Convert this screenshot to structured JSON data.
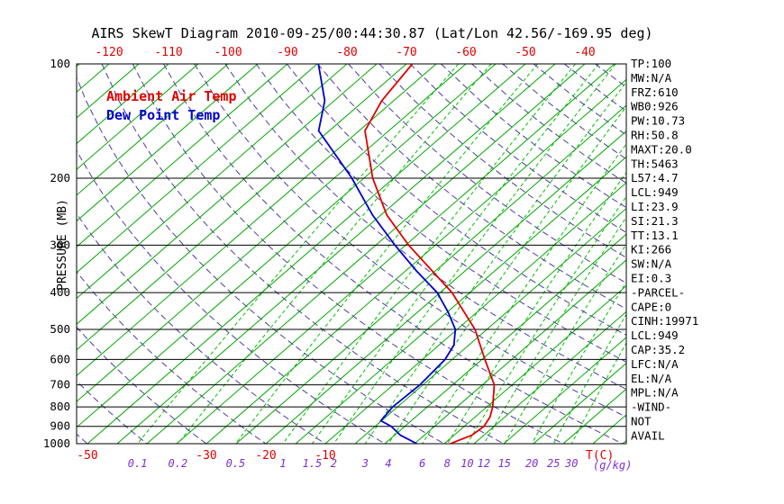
{
  "title": "AIRS SkewT Diagram 2010-09-25/00:44:30.87 (Lat/Lon 42.56/-169.95 deg)",
  "axes": {
    "pressure_label": "PRESSURE (MB)",
    "pressure_ticks": [
      100,
      200,
      300,
      400,
      500,
      600,
      700,
      800,
      900,
      1000
    ],
    "top_temp_ticks": [
      -120,
      -110,
      -100,
      -90,
      -80,
      -70,
      -60,
      -50,
      -40
    ],
    "bottom_temp_ticks": [
      -50,
      -30,
      -20,
      -10
    ],
    "bottom_temp_unit": "T(C)",
    "mixing_ratio_ticks": [
      0.1,
      0.2,
      0.5,
      1,
      1.5,
      2,
      3,
      4,
      6,
      8,
      10,
      12,
      15,
      20,
      25,
      30
    ],
    "mixing_ratio_unit": "(g/kg)"
  },
  "stats": [
    "TP:100",
    "MW:N/A",
    "FRZ:610",
    "WB0:926",
    "PW:10.73",
    "RH:50.8",
    "MAXT:20.0",
    "TH:5463",
    "L57:4.7",
    "LCL:949",
    "LI:23.9",
    "SI:21.3",
    "TT:13.1",
    "KI:266",
    "SW:N/A",
    "EI:0.3",
    "-PARCEL-",
    "CAPE:0",
    "CINH:19971",
    "LCL:949",
    "CAP:35.2",
    "LFC:N/A",
    "EL:N/A",
    "MPL:N/A",
    "-WIND-",
    "NOT",
    "AVAIL"
  ],
  "colors": {
    "isotherm_green": "#00a800",
    "mixing_ratio_green": "#00c000",
    "dry_adiabat_purple": "#4c3d9e",
    "ambient_temp_red": "#e10000",
    "dew_point_blue": "#0000cd",
    "mixing_label_purple": "#7d2fd0",
    "frame_black": "#000000"
  },
  "chart_data": {
    "type": "line",
    "title": "AIRS SkewT Diagram 2010-09-25/00:44:30.87 (Lat/Lon 42.56/-169.95 deg)",
    "xlabel": "Temperature T(C), skewed 45 deg",
    "ylabel": "PRESSURE (MB), log scale",
    "y_range_mb": [
      100,
      1000
    ],
    "top_axis_temp_ticks_c": [
      -120,
      -110,
      -100,
      -90,
      -80,
      -70,
      -60,
      -50,
      -40
    ],
    "bottom_axis_temp_ticks_c": [
      -50,
      -30,
      -20,
      -10
    ],
    "isotherm_step_c": 5,
    "mixing_ratio_lines_g_per_kg": [
      0.1,
      0.2,
      0.5,
      1,
      1.5,
      2,
      3,
      4,
      6,
      8,
      10,
      12,
      15,
      20,
      25,
      30
    ],
    "dry_adiabat_step_c": 10,
    "legend_position": "top-left",
    "series": [
      {
        "name": "Ambient Air Temp",
        "color": "#e10000",
        "points_pressure_mb_temp_c": [
          [
            100,
            -69
          ],
          [
            125,
            -67
          ],
          [
            150,
            -64
          ],
          [
            200,
            -53.5
          ],
          [
            250,
            -44
          ],
          [
            300,
            -34.5
          ],
          [
            400,
            -18
          ],
          [
            500,
            -7
          ],
          [
            600,
            0.5
          ],
          [
            700,
            7
          ],
          [
            800,
            11
          ],
          [
            850,
            12.5
          ],
          [
            900,
            13.3
          ],
          [
            950,
            13
          ],
          [
            1000,
            11
          ]
        ]
      },
      {
        "name": "Dew Point Temp",
        "color": "#0000cd",
        "points_pressure_mb_temp_c": [
          [
            100,
            -84.8
          ],
          [
            125,
            -76.6
          ],
          [
            150,
            -71.8
          ],
          [
            200,
            -57
          ],
          [
            250,
            -46.4
          ],
          [
            300,
            -36.8
          ],
          [
            350,
            -28.3
          ],
          [
            400,
            -20.5
          ],
          [
            450,
            -14.9
          ],
          [
            500,
            -10.3
          ],
          [
            550,
            -7.5
          ],
          [
            600,
            -6.2
          ],
          [
            700,
            -5.5
          ],
          [
            800,
            -5.8
          ],
          [
            870,
            -5.1
          ],
          [
            900,
            -2.3
          ],
          [
            950,
            1
          ],
          [
            1000,
            5.4
          ]
        ]
      }
    ]
  }
}
